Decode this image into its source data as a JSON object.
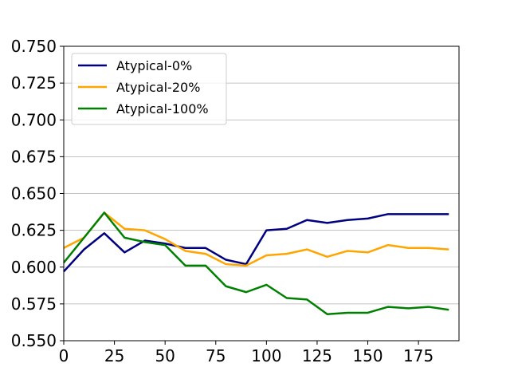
{
  "chart_data": {
    "type": "line",
    "title": "",
    "xlabel": "",
    "ylabel": "",
    "xlim": [
      0,
      195
    ],
    "ylim": [
      0.55,
      0.75
    ],
    "x_ticks": [
      0,
      25,
      50,
      75,
      100,
      125,
      150,
      175
    ],
    "y_ticks": [
      0.55,
      0.575,
      0.6,
      0.625,
      0.65,
      0.675,
      0.7,
      0.725,
      0.75
    ],
    "x_tick_labels": [
      "0",
      "25",
      "50",
      "75",
      "100",
      "125",
      "150",
      "175"
    ],
    "y_tick_labels": [
      "0.550",
      "0.575",
      "0.600",
      "0.625",
      "0.650",
      "0.675",
      "0.700",
      "0.725",
      "0.750"
    ],
    "grid": "horizontal",
    "legend_position": "top-left",
    "x": [
      0,
      10,
      20,
      30,
      40,
      50,
      60,
      70,
      80,
      90,
      100,
      110,
      120,
      130,
      140,
      150,
      160,
      170,
      180,
      190
    ],
    "series": [
      {
        "name": "Atypical-0%",
        "color": "#000080",
        "values": [
          0.597,
          0.612,
          0.623,
          0.61,
          0.618,
          0.616,
          0.613,
          0.613,
          0.605,
          0.602,
          0.625,
          0.626,
          0.632,
          0.63,
          0.632,
          0.633,
          0.636,
          0.636,
          0.636,
          0.636
        ]
      },
      {
        "name": "Atypical-20%",
        "color": "#FFA500",
        "values": [
          0.613,
          0.62,
          0.637,
          0.626,
          0.625,
          0.619,
          0.611,
          0.609,
          0.602,
          0.601,
          0.608,
          0.609,
          0.612,
          0.607,
          0.611,
          0.61,
          0.615,
          0.613,
          0.613,
          0.612
        ]
      },
      {
        "name": "Atypical-100%",
        "color": "#008000",
        "values": [
          0.603,
          0.62,
          0.637,
          0.62,
          0.617,
          0.615,
          0.601,
          0.601,
          0.587,
          0.583,
          0.588,
          0.579,
          0.578,
          0.568,
          0.569,
          0.569,
          0.573,
          0.572,
          0.573,
          0.571
        ]
      }
    ]
  }
}
